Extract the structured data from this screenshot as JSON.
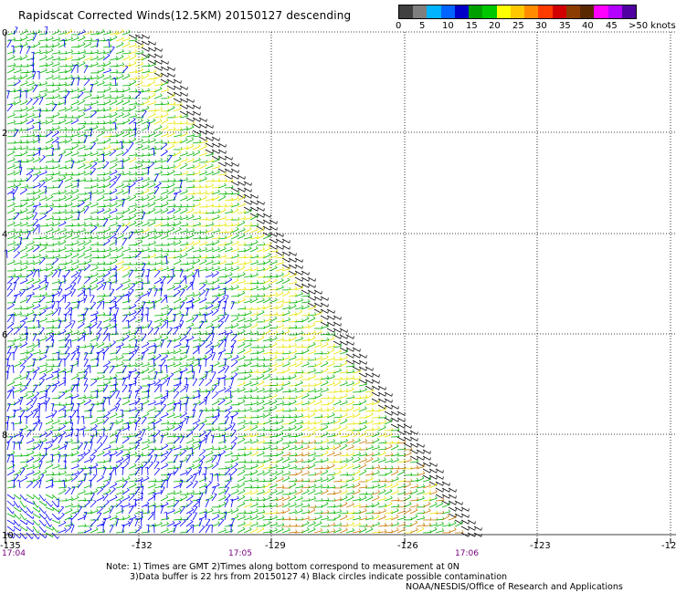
{
  "title": "Rapidscat Corrected Winds(12.5KM) 20150127 descending",
  "legend": {
    "colors": [
      "#404040",
      "#7f7f7f",
      "#00b4ff",
      "#0064ff",
      "#0000c8",
      "#00a000",
      "#00c800",
      "#ffff00",
      "#ffc800",
      "#ff8c00",
      "#ff3c00",
      "#d20000",
      "#8c3c00",
      "#5a2800",
      "#ff00ff",
      "#b400ff",
      "#5000a0"
    ],
    "labels": [
      "0",
      "5",
      "10",
      "15",
      "20",
      "25",
      "30",
      "35",
      "40",
      "45",
      ">50 knots"
    ],
    "label_positions": [
      0,
      26,
      51,
      77,
      102,
      128,
      153,
      179,
      204,
      230,
      255
    ]
  },
  "x_ticks": [
    "-135",
    "-132",
    "-129",
    "-126",
    "-123",
    "-12"
  ],
  "y_ticks": [
    "0",
    "2",
    "4",
    "6",
    "8",
    "10"
  ],
  "times": [
    "17:04",
    "17:05",
    "17:06"
  ],
  "notes": {
    "line1": "Note: 1) Times are GMT 2)Times along bottom correspond to measurement at 0N",
    "line2": "3)Data buffer is 22 hrs from 20150127 4) Black circles indicate possible contamination",
    "line3": "NOAA/NESDIS/Office of Research and Applications"
  },
  "map_data": {
    "longitude_range": [
      -135,
      -123
    ],
    "latitude_range": [
      -10,
      0
    ],
    "wind_colors": {
      "blue": "#0000ff",
      "green": "#00b400",
      "yellow": "#e6e600",
      "orange": "#c87800",
      "black": "#000000"
    }
  }
}
